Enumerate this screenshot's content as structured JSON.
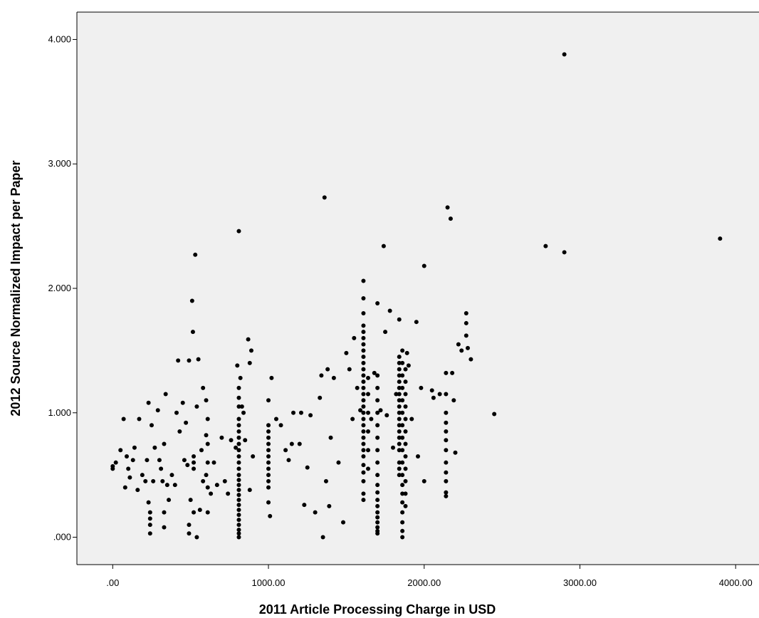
{
  "chart_data": {
    "type": "scatter",
    "title": "",
    "xlabel": "2011 Article Processing Charge in USD",
    "ylabel": "2012 Source Normalized Impact per Paper",
    "xlim": [
      -230,
      4150
    ],
    "ylim": [
      -0.22,
      4.22
    ],
    "grid": false,
    "colors": {
      "plot_background": "#f0f0f0",
      "marker": "#000000",
      "axis": "#000000"
    },
    "x_ticks": [
      {
        "value": 0,
        "label": ".00"
      },
      {
        "value": 1000,
        "label": "1000.00"
      },
      {
        "value": 2000,
        "label": "2000.00"
      },
      {
        "value": 3000,
        "label": "3000.00"
      },
      {
        "value": 4000,
        "label": "4000.00"
      }
    ],
    "y_ticks": [
      {
        "value": 0,
        "label": ".000"
      },
      {
        "value": 1,
        "label": "1.000"
      },
      {
        "value": 2,
        "label": "2.000"
      },
      {
        "value": 3,
        "label": "3.000"
      },
      {
        "value": 4,
        "label": "4.000"
      }
    ],
    "series": [
      {
        "points": [
          [
            0,
            0.57
          ],
          [
            0,
            0.55
          ],
          [
            20,
            0.6
          ],
          [
            50,
            0.7
          ],
          [
            70,
            0.95
          ],
          [
            80,
            0.4
          ],
          [
            90,
            0.65
          ],
          [
            100,
            0.55
          ],
          [
            110,
            0.48
          ],
          [
            130,
            0.62
          ],
          [
            140,
            0.72
          ],
          [
            160,
            0.38
          ],
          [
            170,
            0.95
          ],
          [
            190,
            0.5
          ],
          [
            210,
            0.45
          ],
          [
            220,
            0.62
          ],
          [
            230,
            1.08
          ],
          [
            230,
            0.28
          ],
          [
            240,
            0.2
          ],
          [
            250,
            0.9
          ],
          [
            260,
            0.45
          ],
          [
            270,
            0.72
          ],
          [
            290,
            1.02
          ],
          [
            300,
            0.62
          ],
          [
            310,
            0.55
          ],
          [
            320,
            0.45
          ],
          [
            330,
            0.75
          ],
          [
            340,
            1.15
          ],
          [
            350,
            0.42
          ],
          [
            360,
            0.3
          ],
          [
            380,
            0.5
          ],
          [
            400,
            0.42
          ],
          [
            410,
            1.0
          ],
          [
            420,
            1.42
          ],
          [
            430,
            0.85
          ],
          [
            450,
            1.08
          ],
          [
            460,
            0.62
          ],
          [
            470,
            0.92
          ],
          [
            480,
            0.58
          ],
          [
            490,
            1.42
          ],
          [
            500,
            0.3
          ],
          [
            510,
            1.9
          ],
          [
            515,
            1.65
          ],
          [
            520,
            0.55
          ],
          [
            530,
            2.27
          ],
          [
            540,
            1.05
          ],
          [
            550,
            1.43
          ],
          [
            560,
            0.22
          ],
          [
            570,
            0.7
          ],
          [
            580,
            0.45
          ],
          [
            600,
            0.5
          ],
          [
            610,
            0.95
          ],
          [
            630,
            0.35
          ],
          [
            650,
            0.6
          ],
          [
            670,
            0.42
          ],
          [
            700,
            0.8
          ],
          [
            720,
            0.45
          ],
          [
            740,
            0.35
          ],
          [
            240,
            0.15
          ],
          [
            240,
            0.1
          ],
          [
            240,
            0.03
          ],
          [
            330,
            0.2
          ],
          [
            330,
            0.08
          ],
          [
            490,
            0.1
          ],
          [
            490,
            0.03
          ],
          [
            520,
            0.6
          ],
          [
            520,
            0.65
          ],
          [
            520,
            0.2
          ],
          [
            540,
            0.0
          ],
          [
            580,
            1.2
          ],
          [
            600,
            1.1
          ],
          [
            600,
            0.82
          ],
          [
            610,
            0.75
          ],
          [
            610,
            0.6
          ],
          [
            610,
            0.4
          ],
          [
            610,
            0.2
          ],
          [
            760,
            0.78
          ],
          [
            790,
            0.72
          ],
          [
            800,
            1.38
          ],
          [
            810,
            2.46
          ],
          [
            820,
            1.28
          ],
          [
            830,
            1.05
          ],
          [
            840,
            1.0
          ],
          [
            850,
            0.78
          ],
          [
            870,
            1.59
          ],
          [
            880,
            1.4
          ],
          [
            890,
            1.5
          ],
          [
            880,
            0.38
          ],
          [
            900,
            0.65
          ],
          [
            1000,
            0.28
          ],
          [
            1010,
            0.17
          ],
          [
            1020,
            1.28
          ],
          [
            1050,
            0.95
          ],
          [
            1080,
            0.9
          ],
          [
            1110,
            0.7
          ],
          [
            1130,
            0.62
          ],
          [
            1150,
            0.75
          ],
          [
            1160,
            1.0
          ],
          [
            1200,
            0.75
          ],
          [
            1210,
            1.0
          ],
          [
            1230,
            0.26
          ],
          [
            1250,
            0.56
          ],
          [
            1270,
            0.98
          ],
          [
            1300,
            0.2
          ],
          [
            1330,
            1.12
          ],
          [
            1340,
            1.3
          ],
          [
            1350,
            0.0
          ],
          [
            1360,
            2.73
          ],
          [
            1370,
            0.45
          ],
          [
            1380,
            1.35
          ],
          [
            1390,
            0.25
          ],
          [
            1400,
            0.8
          ],
          [
            1420,
            1.28
          ],
          [
            1450,
            0.6
          ],
          [
            1480,
            0.12
          ],
          [
            1500,
            1.48
          ],
          [
            1520,
            1.35
          ],
          [
            1540,
            0.95
          ],
          [
            1550,
            1.6
          ],
          [
            1570,
            1.2
          ],
          [
            1590,
            1.02
          ],
          [
            1660,
            0.95
          ],
          [
            1680,
            1.32
          ],
          [
            1700,
            1.88
          ],
          [
            1720,
            1.02
          ],
          [
            1740,
            2.34
          ],
          [
            1750,
            1.65
          ],
          [
            1760,
            0.98
          ],
          [
            1780,
            1.82
          ],
          [
            1800,
            0.72
          ],
          [
            1820,
            1.15
          ],
          [
            1840,
            1.75
          ],
          [
            1890,
            1.48
          ],
          [
            1900,
            1.38
          ],
          [
            1920,
            0.95
          ],
          [
            1950,
            1.73
          ],
          [
            1960,
            0.65
          ],
          [
            1980,
            1.2
          ],
          [
            2000,
            2.18
          ],
          [
            2000,
            0.45
          ],
          [
            2050,
            1.18
          ],
          [
            2060,
            1.12
          ],
          [
            2100,
            1.15
          ],
          [
            2150,
            2.65
          ],
          [
            2170,
            2.56
          ],
          [
            2180,
            1.32
          ],
          [
            2190,
            1.1
          ],
          [
            2200,
            0.68
          ],
          [
            2220,
            1.55
          ],
          [
            2240,
            1.5
          ],
          [
            2270,
            1.8
          ],
          [
            2270,
            1.72
          ],
          [
            2270,
            1.62
          ],
          [
            2280,
            1.52
          ],
          [
            2300,
            1.43
          ],
          [
            2450,
            0.99
          ],
          [
            2780,
            2.34
          ],
          [
            2900,
            3.88
          ],
          [
            2900,
            2.29
          ],
          [
            3900,
            2.4
          ],
          [
            810,
            0.0
          ],
          [
            810,
            0.03
          ],
          [
            810,
            0.06
          ],
          [
            810,
            0.1
          ],
          [
            810,
            0.14
          ],
          [
            810,
            0.18
          ],
          [
            810,
            0.22
          ],
          [
            810,
            0.26
          ],
          [
            810,
            0.3
          ],
          [
            810,
            0.34
          ],
          [
            810,
            0.38
          ],
          [
            810,
            0.42
          ],
          [
            810,
            0.46
          ],
          [
            810,
            0.5
          ],
          [
            810,
            0.55
          ],
          [
            810,
            0.6
          ],
          [
            810,
            0.65
          ],
          [
            810,
            0.7
          ],
          [
            810,
            0.75
          ],
          [
            810,
            0.8
          ],
          [
            810,
            0.85
          ],
          [
            810,
            0.9
          ],
          [
            810,
            0.95
          ],
          [
            810,
            1.05
          ],
          [
            810,
            1.12
          ],
          [
            810,
            1.2
          ],
          [
            1000,
            0.4
          ],
          [
            1000,
            0.45
          ],
          [
            1000,
            0.5
          ],
          [
            1000,
            0.55
          ],
          [
            1000,
            0.6
          ],
          [
            1000,
            0.65
          ],
          [
            1000,
            0.7
          ],
          [
            1000,
            0.75
          ],
          [
            1000,
            0.8
          ],
          [
            1000,
            0.85
          ],
          [
            1000,
            0.9
          ],
          [
            1000,
            1.1
          ],
          [
            1610,
            0.3
          ],
          [
            1610,
            0.35
          ],
          [
            1610,
            0.45
          ],
          [
            1610,
            0.52
          ],
          [
            1610,
            0.58
          ],
          [
            1610,
            0.65
          ],
          [
            1610,
            0.7
          ],
          [
            1610,
            0.75
          ],
          [
            1610,
            0.8
          ],
          [
            1610,
            0.85
          ],
          [
            1610,
            0.9
          ],
          [
            1610,
            0.95
          ],
          [
            1610,
            1.0
          ],
          [
            1610,
            1.05
          ],
          [
            1610,
            1.1
          ],
          [
            1610,
            1.15
          ],
          [
            1610,
            1.2
          ],
          [
            1610,
            1.25
          ],
          [
            1610,
            1.3
          ],
          [
            1610,
            1.35
          ],
          [
            1610,
            1.4
          ],
          [
            1610,
            1.45
          ],
          [
            1610,
            1.5
          ],
          [
            1610,
            1.55
          ],
          [
            1610,
            1.6
          ],
          [
            1610,
            1.65
          ],
          [
            1610,
            1.7
          ],
          [
            1610,
            1.8
          ],
          [
            1610,
            1.92
          ],
          [
            1610,
            2.06
          ],
          [
            1640,
            0.55
          ],
          [
            1640,
            0.7
          ],
          [
            1640,
            0.85
          ],
          [
            1640,
            1.0
          ],
          [
            1640,
            1.15
          ],
          [
            1640,
            1.28
          ],
          [
            1700,
            0.03
          ],
          [
            1700,
            0.05
          ],
          [
            1700,
            0.08
          ],
          [
            1700,
            0.12
          ],
          [
            1700,
            0.16
          ],
          [
            1700,
            0.2
          ],
          [
            1700,
            0.25
          ],
          [
            1700,
            0.3
          ],
          [
            1700,
            0.36
          ],
          [
            1700,
            0.42
          ],
          [
            1700,
            0.5
          ],
          [
            1700,
            0.6
          ],
          [
            1700,
            0.7
          ],
          [
            1700,
            0.8
          ],
          [
            1700,
            0.9
          ],
          [
            1700,
            1.0
          ],
          [
            1700,
            1.1
          ],
          [
            1700,
            1.2
          ],
          [
            1700,
            1.3
          ],
          [
            1840,
            0.7
          ],
          [
            1840,
            0.75
          ],
          [
            1840,
            0.8
          ],
          [
            1840,
            0.85
          ],
          [
            1840,
            0.9
          ],
          [
            1840,
            0.95
          ],
          [
            1840,
            1.0
          ],
          [
            1840,
            1.05
          ],
          [
            1840,
            1.1
          ],
          [
            1840,
            1.15
          ],
          [
            1840,
            1.2
          ],
          [
            1840,
            1.25
          ],
          [
            1840,
            1.3
          ],
          [
            1840,
            1.35
          ],
          [
            1840,
            1.4
          ],
          [
            1840,
            1.45
          ],
          [
            1840,
            0.5
          ],
          [
            1840,
            0.55
          ],
          [
            1840,
            0.6
          ],
          [
            1860,
            0.0
          ],
          [
            1860,
            0.05
          ],
          [
            1860,
            0.12
          ],
          [
            1860,
            0.2
          ],
          [
            1860,
            0.28
          ],
          [
            1860,
            0.35
          ],
          [
            1860,
            0.42
          ],
          [
            1860,
            0.5
          ],
          [
            1860,
            0.6
          ],
          [
            1860,
            0.7
          ],
          [
            1860,
            0.8
          ],
          [
            1860,
            0.9
          ],
          [
            1860,
            1.0
          ],
          [
            1860,
            1.1
          ],
          [
            1860,
            1.2
          ],
          [
            1860,
            1.3
          ],
          [
            1860,
            1.4
          ],
          [
            1860,
            1.5
          ],
          [
            1880,
            0.25
          ],
          [
            1880,
            0.35
          ],
          [
            1880,
            0.45
          ],
          [
            1880,
            0.55
          ],
          [
            1880,
            0.65
          ],
          [
            1880,
            0.75
          ],
          [
            1880,
            0.85
          ],
          [
            1880,
            0.95
          ],
          [
            1880,
            1.05
          ],
          [
            1880,
            1.15
          ],
          [
            1880,
            1.25
          ],
          [
            1880,
            1.35
          ],
          [
            2140,
            0.33
          ],
          [
            2140,
            0.36
          ],
          [
            2140,
            0.45
          ],
          [
            2140,
            0.52
          ],
          [
            2140,
            0.6
          ],
          [
            2140,
            0.7
          ],
          [
            2140,
            0.78
          ],
          [
            2140,
            0.85
          ],
          [
            2140,
            0.92
          ],
          [
            2140,
            1.0
          ],
          [
            2140,
            1.15
          ],
          [
            2140,
            1.32
          ]
        ]
      }
    ]
  }
}
